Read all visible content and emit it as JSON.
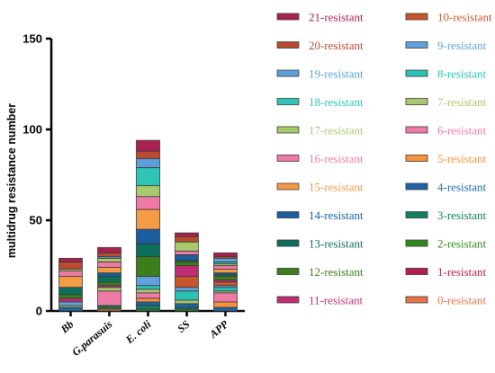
{
  "chart_data": {
    "type": "bar",
    "stacked": true,
    "title": "",
    "xlabel": "",
    "ylabel": "multidrug resistance number",
    "ylim": [
      0,
      150
    ],
    "yticks": [
      0,
      50,
      100,
      150
    ],
    "grid": false,
    "legend_position": "right",
    "categories": [
      "Bb",
      "G.parasuis",
      "E. coli",
      "SS",
      "APP"
    ],
    "series": [
      {
        "name": "0-resistant",
        "color": "#e6724a",
        "values": [
          0,
          1,
          0,
          0,
          0
        ]
      },
      {
        "name": "1-resistant",
        "color": "#b21e4b",
        "values": [
          0,
          0,
          0,
          0,
          0
        ]
      },
      {
        "name": "2-resistant",
        "color": "#2f8a1e",
        "values": [
          0,
          1,
          1,
          1,
          0
        ]
      },
      {
        "name": "3-resistant",
        "color": "#0f8060",
        "values": [
          0,
          1,
          2,
          1,
          0
        ]
      },
      {
        "name": "4-resistant",
        "color": "#1e64a6",
        "values": [
          2,
          0,
          2,
          2,
          2
        ]
      },
      {
        "name": "5-resistant",
        "color": "#f7923a",
        "values": [
          0,
          0,
          2,
          0,
          3
        ]
      },
      {
        "name": "6-resistant",
        "color": "#ef7aa5",
        "values": [
          0,
          8,
          3,
          0,
          5
        ]
      },
      {
        "name": "7-resistant",
        "color": "#a9c770",
        "values": [
          1,
          2,
          2,
          2,
          1
        ]
      },
      {
        "name": "8-resistant",
        "color": "#29c2b4",
        "values": [
          0,
          0,
          2,
          5,
          2
        ]
      },
      {
        "name": "9-resistant",
        "color": "#5fa2dd",
        "values": [
          2,
          0,
          5,
          2,
          1
        ]
      },
      {
        "name": "10-resistant",
        "color": "#c9552c",
        "values": [
          0,
          0,
          0,
          6,
          2
        ]
      },
      {
        "name": "11-resistant",
        "color": "#c12d74",
        "values": [
          2,
          1,
          0,
          6,
          1
        ]
      },
      {
        "name": "12-resistant",
        "color": "#3c7d1c",
        "values": [
          2,
          2,
          11,
          2,
          2
        ]
      },
      {
        "name": "13-resistant",
        "color": "#0c6e5c",
        "values": [
          4,
          3,
          7,
          1,
          1
        ]
      },
      {
        "name": "14-resistant",
        "color": "#1a5e9e",
        "values": [
          0,
          2,
          8,
          3,
          1
        ]
      },
      {
        "name": "15-resistant",
        "color": "#f59a45",
        "values": [
          6,
          3,
          11,
          0,
          2
        ]
      },
      {
        "name": "16-resistant",
        "color": "#f07aa7",
        "values": [
          3,
          3,
          7,
          2,
          2
        ]
      },
      {
        "name": "17-resistant",
        "color": "#a8c96c",
        "values": [
          1,
          2,
          6,
          5,
          1
        ]
      },
      {
        "name": "18-resistant",
        "color": "#30c4b6",
        "values": [
          0,
          0,
          10,
          0,
          1
        ]
      },
      {
        "name": "19-resistant",
        "color": "#5c9fda",
        "values": [
          0,
          1,
          5,
          0,
          2
        ]
      },
      {
        "name": "20-resistant",
        "color": "#b94a30",
        "values": [
          4,
          2,
          4,
          3,
          1
        ]
      },
      {
        "name": "21-resistant",
        "color": "#a8204f",
        "values": [
          2,
          3,
          6,
          2,
          2
        ]
      }
    ],
    "legend_columns": [
      [
        "21-resistant",
        "20-resistant",
        "19-resistant",
        "18-resistant",
        "17-resistant",
        "16-resistant",
        "15-resistant",
        "14-resistant",
        "13-resistant",
        "12-resistant",
        "11-resistant"
      ],
      [
        "10-resistant",
        "9-resistant",
        "8-resistant",
        "7-resistant",
        "6-resistant",
        "5-resistant",
        "4-resistant",
        "3-resistant",
        "2-resistant",
        "1-resistant",
        "0-resistant"
      ]
    ]
  }
}
